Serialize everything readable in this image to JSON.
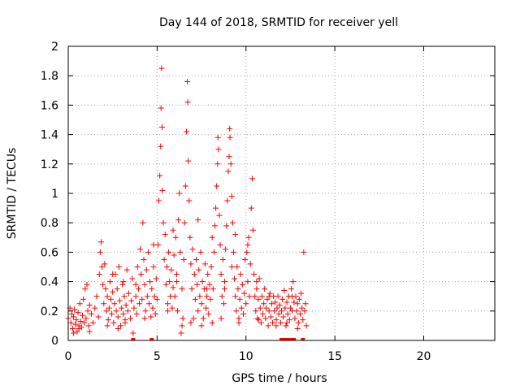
{
  "chart_data": {
    "type": "scatter",
    "title": "Day 144 of 2018, SRMTID for receiver yell",
    "xlabel": "GPS time / hours",
    "ylabel": "SRMTID / TECUs",
    "xlim": [
      0,
      24
    ],
    "ylim": [
      0,
      2
    ],
    "xticks": [
      0,
      5,
      10,
      15,
      20
    ],
    "yticks": [
      0,
      0.2,
      0.4,
      0.6,
      0.8,
      1,
      1.2,
      1.4,
      1.6,
      1.8,
      2
    ],
    "xtick_labels": [
      "0",
      "5",
      "10",
      "15",
      "20"
    ],
    "ytick_labels": [
      "0",
      "0.2",
      "0.4",
      "0.6",
      "0.8",
      "1",
      "1.2",
      "1.4",
      "1.6",
      "1.8",
      "2"
    ],
    "grid": true,
    "marker": "+",
    "color": "#ff0000",
    "series": [
      {
        "name": "SRMTID",
        "points": [
          [
            0.0,
            0.15
          ],
          [
            0.1,
            0.22
          ],
          [
            0.15,
            0.12
          ],
          [
            0.2,
            0.18
          ],
          [
            0.25,
            0.08
          ],
          [
            0.3,
            0.16
          ],
          [
            0.35,
            0.21
          ],
          [
            0.4,
            0.11
          ],
          [
            0.45,
            0.14
          ],
          [
            0.5,
            0.06
          ],
          [
            0.55,
            0.19
          ],
          [
            0.6,
            0.1
          ],
          [
            0.65,
            0.25
          ],
          [
            0.7,
            0.13
          ],
          [
            0.75,
            0.09
          ],
          [
            0.8,
            0.17
          ],
          [
            0.85,
            0.28
          ],
          [
            0.9,
            0.12
          ],
          [
            0.95,
            0.35
          ],
          [
            1.0,
            0.15
          ],
          [
            1.05,
            0.38
          ],
          [
            1.1,
            0.2
          ],
          [
            1.15,
            0.1
          ],
          [
            1.2,
            0.24
          ],
          [
            1.3,
            0.18
          ],
          [
            1.4,
            0.12
          ],
          [
            1.5,
            0.22
          ],
          [
            1.6,
            0.3
          ],
          [
            1.7,
            0.16
          ],
          [
            1.75,
            0.45
          ],
          [
            1.8,
            0.6
          ],
          [
            1.85,
            0.67
          ],
          [
            1.9,
            0.5
          ],
          [
            1.95,
            0.38
          ],
          [
            2.0,
            0.25
          ],
          [
            2.05,
            0.52
          ],
          [
            2.1,
            0.35
          ],
          [
            2.15,
            0.2
          ],
          [
            2.2,
            0.3
          ],
          [
            2.25,
            0.14
          ],
          [
            2.3,
            0.22
          ],
          [
            2.35,
            0.4
          ],
          [
            2.4,
            0.28
          ],
          [
            2.45,
            0.18
          ],
          [
            2.5,
            0.33
          ],
          [
            2.55,
            0.12
          ],
          [
            2.6,
            0.25
          ],
          [
            2.65,
            0.45
          ],
          [
            2.7,
            0.2
          ],
          [
            2.75,
            0.35
          ],
          [
            2.8,
            0.16
          ],
          [
            2.85,
            0.5
          ],
          [
            2.9,
            0.27
          ],
          [
            2.95,
            0.1
          ],
          [
            3.0,
            0.22
          ],
          [
            3.05,
            0.38
          ],
          [
            3.1,
            0.18
          ],
          [
            3.15,
            0.3
          ],
          [
            3.2,
            0.14
          ],
          [
            3.25,
            0.24
          ],
          [
            3.3,
            0.48
          ],
          [
            3.35,
            0.2
          ],
          [
            3.4,
            0.32
          ],
          [
            3.5,
            0.15
          ],
          [
            3.55,
            0.27
          ],
          [
            3.6,
            0.42
          ],
          [
            3.65,
            0.05
          ],
          [
            3.7,
            0.22
          ],
          [
            3.8,
            0.3
          ],
          [
            3.85,
            0.18
          ],
          [
            3.9,
            0.5
          ],
          [
            3.95,
            0.35
          ],
          [
            4.0,
            0.25
          ],
          [
            4.05,
            0.62
          ],
          [
            4.1,
            0.45
          ],
          [
            4.15,
            0.28
          ],
          [
            4.2,
            0.8
          ],
          [
            4.25,
            0.55
          ],
          [
            4.3,
            0.38
          ],
          [
            4.35,
            0.2
          ],
          [
            4.4,
            0.48
          ],
          [
            4.45,
            0.3
          ],
          [
            4.5,
            0.6
          ],
          [
            4.55,
            0.25
          ],
          [
            4.6,
            0.4
          ],
          [
            4.65,
            0.16
          ],
          [
            4.7,
            0.35
          ],
          [
            4.75,
            0.22
          ],
          [
            4.8,
            0.5
          ],
          [
            4.85,
            0.3
          ],
          [
            4.9,
            0.18
          ],
          [
            4.95,
            0.42
          ],
          [
            5.0,
            0.28
          ],
          [
            5.05,
            0.65
          ],
          [
            5.1,
            0.95
          ],
          [
            5.15,
            1.12
          ],
          [
            5.2,
            1.32
          ],
          [
            5.22,
            1.58
          ],
          [
            5.25,
            1.85
          ],
          [
            5.28,
            1.45
          ],
          [
            5.3,
            1.02
          ],
          [
            5.35,
            0.8
          ],
          [
            5.4,
            0.55
          ],
          [
            5.45,
            0.72
          ],
          [
            5.5,
            0.38
          ],
          [
            5.55,
            0.5
          ],
          [
            5.6,
            0.25
          ],
          [
            5.65,
            0.6
          ],
          [
            5.7,
            0.4
          ],
          [
            5.75,
            0.3
          ],
          [
            5.8,
            0.48
          ],
          [
            5.85,
            0.22
          ],
          [
            5.9,
            0.36
          ],
          [
            5.95,
            0.58
          ],
          [
            6.0,
            0.3
          ],
          [
            6.05,
            0.7
          ],
          [
            6.1,
            0.45
          ],
          [
            6.15,
            0.2
          ],
          [
            6.2,
            0.82
          ],
          [
            6.25,
            1.0
          ],
          [
            6.3,
            0.6
          ],
          [
            6.35,
            0.05
          ],
          [
            6.4,
            0.35
          ],
          [
            6.45,
            0.15
          ],
          [
            6.5,
            0.55
          ],
          [
            6.55,
            0.8
          ],
          [
            6.6,
            1.05
          ],
          [
            6.65,
            1.42
          ],
          [
            6.7,
            1.76
          ],
          [
            6.72,
            1.62
          ],
          [
            6.75,
            1.22
          ],
          [
            6.8,
            0.95
          ],
          [
            6.85,
            0.7
          ],
          [
            6.9,
            0.52
          ],
          [
            6.95,
            0.35
          ],
          [
            7.0,
            0.62
          ],
          [
            7.05,
            0.15
          ],
          [
            7.1,
            0.45
          ],
          [
            7.15,
            0.28
          ],
          [
            7.2,
            0.55
          ],
          [
            7.25,
            0.38
          ],
          [
            7.3,
            0.2
          ],
          [
            7.35,
            0.48
          ],
          [
            7.4,
            0.3
          ],
          [
            7.45,
            0.6
          ],
          [
            7.5,
            0.25
          ],
          [
            7.55,
            0.4
          ],
          [
            7.6,
            0.15
          ],
          [
            7.65,
            0.35
          ],
          [
            7.7,
            0.52
          ],
          [
            7.75,
            0.22
          ],
          [
            7.8,
            0.3
          ],
          [
            7.85,
            0.45
          ],
          [
            7.9,
            0.18
          ],
          [
            7.95,
            0.38
          ],
          [
            8.0,
            0.28
          ],
          [
            8.05,
            0.5
          ],
          [
            8.1,
            0.12
          ],
          [
            8.15,
            0.35
          ],
          [
            8.2,
            0.6
          ],
          [
            8.25,
            0.78
          ],
          [
            8.3,
            0.9
          ],
          [
            8.35,
            1.05
          ],
          [
            8.4,
            1.2
          ],
          [
            8.42,
            1.38
          ],
          [
            8.45,
            1.3
          ],
          [
            8.5,
            0.85
          ],
          [
            8.55,
            0.65
          ],
          [
            8.6,
            0.45
          ],
          [
            8.65,
            0.3
          ],
          [
            8.7,
            0.55
          ],
          [
            8.75,
            0.25
          ],
          [
            8.8,
            0.4
          ],
          [
            8.85,
            0.62
          ],
          [
            8.9,
            0.78
          ],
          [
            8.95,
            0.95
          ],
          [
            9.0,
            1.15
          ],
          [
            9.05,
            1.25
          ],
          [
            9.08,
            1.44
          ],
          [
            9.1,
            1.38
          ],
          [
            9.15,
            1.2
          ],
          [
            9.2,
            0.98
          ],
          [
            9.25,
            0.8
          ],
          [
            9.3,
            0.6
          ],
          [
            9.35,
            0.42
          ],
          [
            9.4,
            0.3
          ],
          [
            9.45,
            0.2
          ],
          [
            9.5,
            0.5
          ],
          [
            9.55,
            0.35
          ],
          [
            9.6,
            0.15
          ],
          [
            9.65,
            0.28
          ],
          [
            9.7,
            0.45
          ],
          [
            9.75,
            0.22
          ],
          [
            9.8,
            0.38
          ],
          [
            9.85,
            0.18
          ],
          [
            9.9,
            0.32
          ],
          [
            9.95,
            0.55
          ],
          [
            10.0,
            0.25
          ],
          [
            10.05,
            0.6
          ],
          [
            10.1,
            0.4
          ],
          [
            10.15,
            0.7
          ],
          [
            10.2,
            0.3
          ],
          [
            10.25,
            0.52
          ],
          [
            10.3,
            0.9
          ],
          [
            10.35,
            1.1
          ],
          [
            10.4,
            0.75
          ],
          [
            10.45,
            0.45
          ],
          [
            10.5,
            0.3
          ],
          [
            10.55,
            0.2
          ],
          [
            10.6,
            0.35
          ],
          [
            10.65,
            0.15
          ],
          [
            10.7,
            0.28
          ],
          [
            10.75,
            0.42
          ],
          [
            10.8,
            0.22
          ],
          [
            10.85,
            0.12
          ],
          [
            10.9,
            0.3
          ],
          [
            10.95,
            0.18
          ],
          [
            11.0,
            0.25
          ],
          [
            11.05,
            0.35
          ],
          [
            11.1,
            0.15
          ],
          [
            11.15,
            0.22
          ],
          [
            11.2,
            0.28
          ],
          [
            11.25,
            0.1
          ],
          [
            11.3,
            0.2
          ],
          [
            11.35,
            0.32
          ],
          [
            11.4,
            0.16
          ],
          [
            11.45,
            0.25
          ],
          [
            11.5,
            0.12
          ],
          [
            11.55,
            0.3
          ],
          [
            11.6,
            0.2
          ],
          [
            11.65,
            0.26
          ],
          [
            11.7,
            0.14
          ],
          [
            11.75,
            0.22
          ],
          [
            11.8,
            0.3
          ],
          [
            11.85,
            0.18
          ],
          [
            11.9,
            0.24
          ],
          [
            11.95,
            0.12
          ],
          [
            12.0,
            0.2
          ],
          [
            12.05,
            0.28
          ],
          [
            12.1,
            0.16
          ],
          [
            12.15,
            0.34
          ],
          [
            12.2,
            0.22
          ],
          [
            12.25,
            0.1
          ],
          [
            12.3,
            0.26
          ],
          [
            12.35,
            0.18
          ],
          [
            12.4,
            0.3
          ],
          [
            12.45,
            0.14
          ],
          [
            12.5,
            0.22
          ],
          [
            12.55,
            0.35
          ],
          [
            12.6,
            0.2
          ],
          [
            12.65,
            0.4
          ],
          [
            12.7,
            0.26
          ],
          [
            12.75,
            0.15
          ],
          [
            12.8,
            0.3
          ],
          [
            12.85,
            0.2
          ],
          [
            12.9,
            0.25
          ],
          [
            12.95,
            0.12
          ],
          [
            13.0,
            0.28
          ],
          [
            13.05,
            0.18
          ],
          [
            13.1,
            0.32
          ],
          [
            13.15,
            0.22
          ],
          [
            13.2,
            0.14
          ],
          [
            13.25,
            0.6
          ],
          [
            13.3,
            0.2
          ],
          [
            13.35,
            0.25
          ],
          [
            13.4,
            0.1
          ],
          [
            0.3,
            0.05
          ],
          [
            0.6,
            0.08
          ],
          [
            1.2,
            0.06
          ],
          [
            2.2,
            0.1
          ],
          [
            2.8,
            0.08
          ],
          [
            3.2,
            0.12
          ],
          [
            4.3,
            0.15
          ],
          [
            5.6,
            0.2
          ],
          [
            6.4,
            0.1
          ],
          [
            6.9,
            0.12
          ],
          [
            7.5,
            0.1
          ],
          [
            8.6,
            0.15
          ],
          [
            9.6,
            0.12
          ],
          [
            10.7,
            0.14
          ],
          [
            11.7,
            0.1
          ],
          [
            12.3,
            0.12
          ],
          [
            12.9,
            0.08
          ],
          [
            4.8,
            0.65
          ],
          [
            5.9,
            0.75
          ],
          [
            7.3,
            0.82
          ],
          [
            8.1,
            0.7
          ],
          [
            9.4,
            0.72
          ],
          [
            10.1,
            0.65
          ],
          [
            2.5,
            0.45
          ],
          [
            3.1,
            0.4
          ],
          [
            3.8,
            0.38
          ],
          [
            6.1,
            0.4
          ],
          [
            7.8,
            0.35
          ],
          [
            8.8,
            0.35
          ],
          [
            9.2,
            0.5
          ],
          [
            10.6,
            0.4
          ],
          [
            11.3,
            0.3
          ],
          [
            12.6,
            0.3
          ],
          [
            3.65,
            0.0
          ],
          [
            4.7,
            0.0
          ],
          [
            12.0,
            0.0
          ],
          [
            12.1,
            0.0
          ],
          [
            12.2,
            0.0
          ],
          [
            12.35,
            0.0
          ],
          [
            12.45,
            0.0
          ],
          [
            12.6,
            0.0
          ],
          [
            12.7,
            0.0
          ],
          [
            13.2,
            0.0
          ]
        ]
      }
    ]
  }
}
